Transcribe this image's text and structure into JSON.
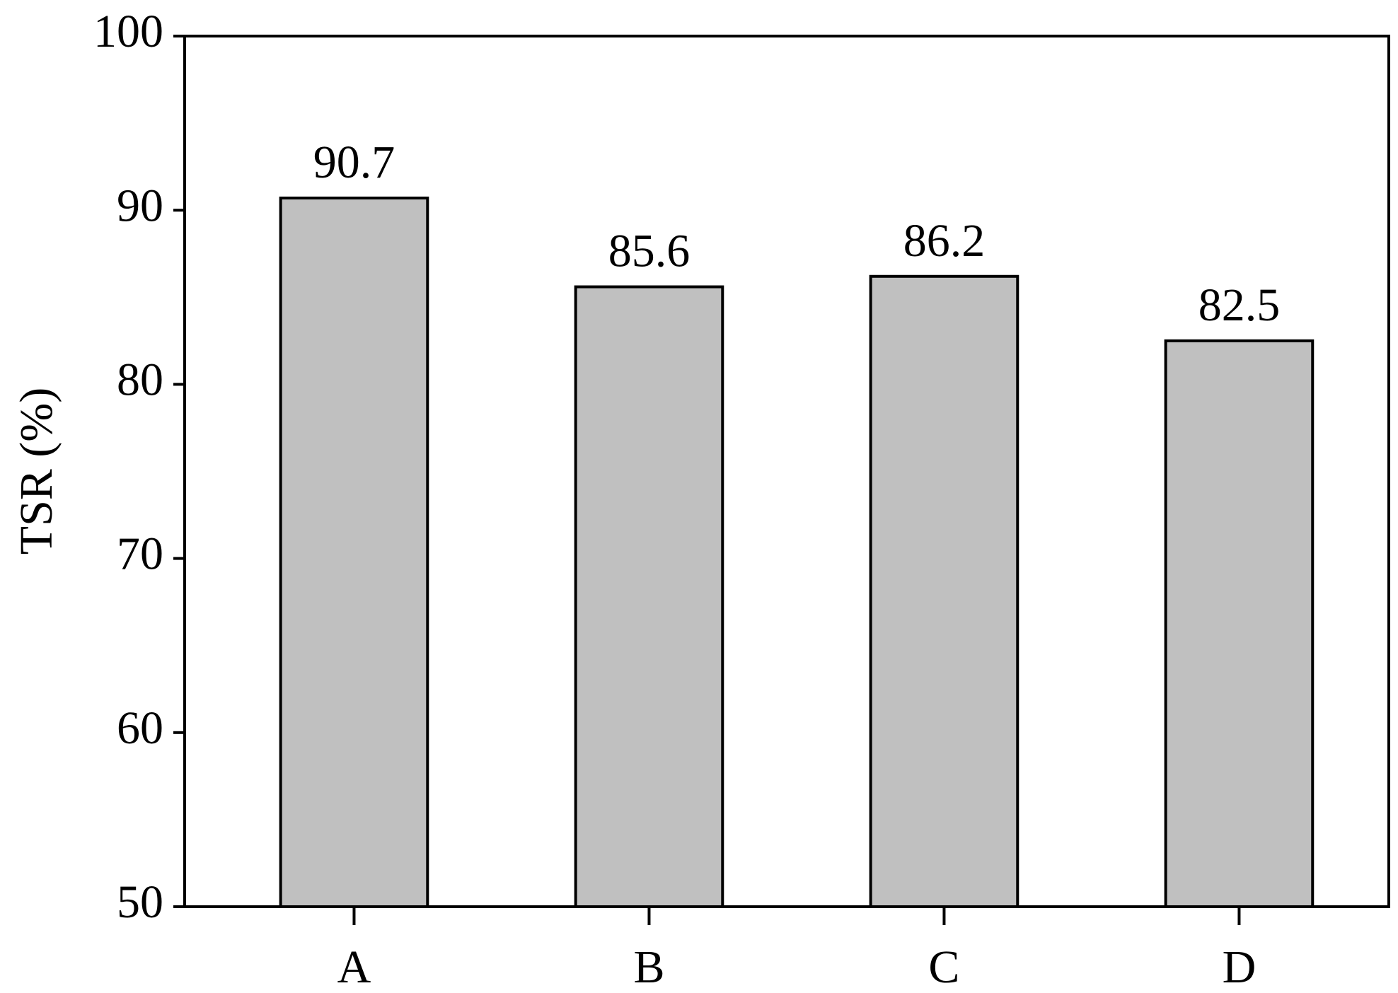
{
  "chart_data": {
    "type": "bar",
    "categories": [
      "A",
      "B",
      "C",
      "D"
    ],
    "values": [
      90.7,
      85.6,
      86.2,
      82.5
    ],
    "color": "#c0c0c0",
    "ylabel": "TSR (%)",
    "ylim": [
      50,
      100
    ],
    "yticks": [
      50,
      60,
      70,
      80,
      90,
      100
    ],
    "grid": false
  }
}
